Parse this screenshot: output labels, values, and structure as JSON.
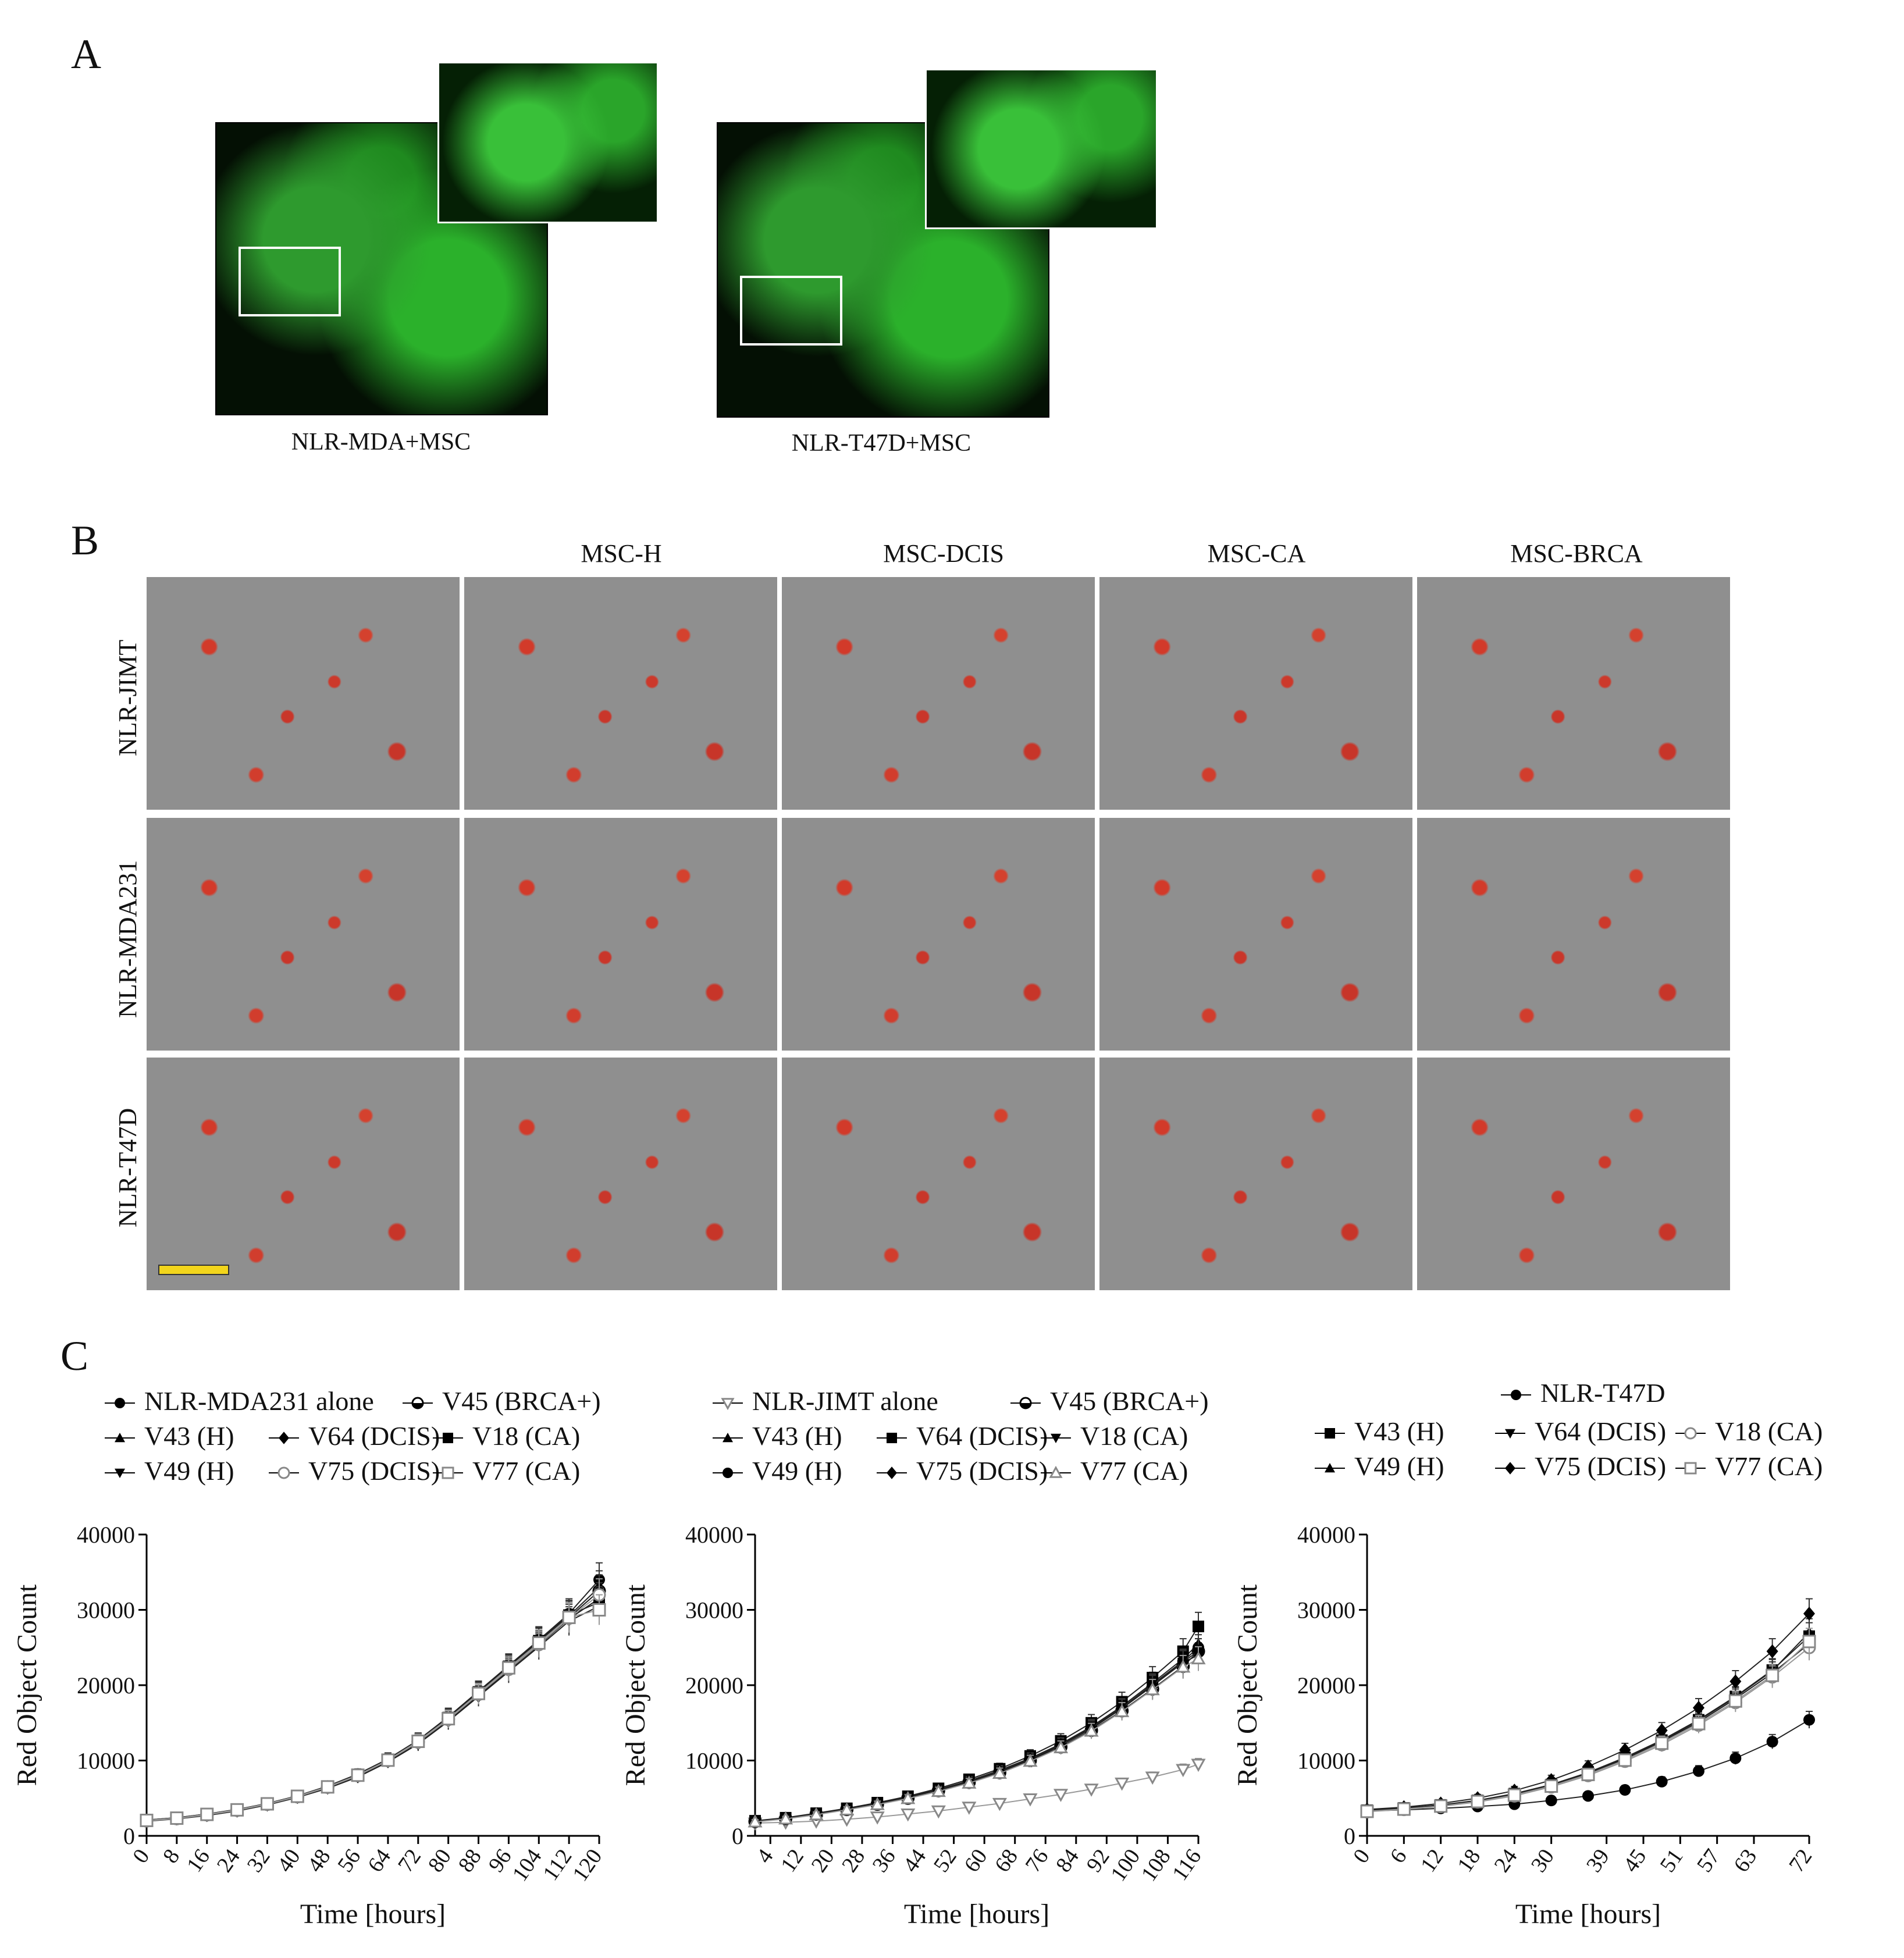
{
  "panels": {
    "a": {
      "letter": "A",
      "captions": [
        "NLR-MDA+MSC",
        "NLR-T47D+MSC"
      ]
    },
    "b": {
      "letter": "B",
      "column_headers": [
        "MSC-H",
        "MSC-DCIS",
        "MSC-CA",
        "MSC-BRCA"
      ],
      "row_headers": [
        "NLR-JIMT",
        "NLR-MDA231",
        "NLR-T47D"
      ]
    },
    "c": {
      "letter": "C"
    }
  },
  "chart_data": [
    {
      "type": "line",
      "title": "",
      "xlabel": "Time [hours]",
      "ylabel": "Red Object Count",
      "ylim": [
        0,
        40000
      ],
      "yticks": [
        0,
        10000,
        20000,
        30000,
        40000
      ],
      "ytick_labels": [
        "0",
        "10000",
        "20000",
        "30000",
        "40000"
      ],
      "xlim": [
        0,
        120
      ],
      "xticks": [
        0,
        8,
        16,
        24,
        32,
        40,
        48,
        56,
        64,
        72,
        80,
        88,
        96,
        104,
        112,
        120
      ],
      "x": [
        0,
        8,
        16,
        24,
        32,
        40,
        48,
        56,
        64,
        72,
        80,
        88,
        96,
        104,
        112,
        120
      ],
      "legend": [
        "NLR-MDA231 alone",
        "V45 (BRCA+)",
        "V43 (H)",
        "V64 (DCIS)",
        "V18 (CA)",
        "V49 (H)",
        "V75 (DCIS)",
        "V77 (CA)"
      ],
      "series": [
        {
          "name": "NLR-MDA231 alone",
          "values": [
            2100,
            2400,
            2900,
            3500,
            4300,
            5300,
            6600,
            8200,
            10200,
            12700,
            15800,
            19200,
            22600,
            26000,
            29500,
            34000
          ]
        },
        {
          "name": "V45 (BRCA+)",
          "values": [
            2000,
            2300,
            2800,
            3400,
            4200,
            5200,
            6500,
            8000,
            10000,
            12500,
            15500,
            18800,
            22200,
            25500,
            29000,
            32500
          ]
        },
        {
          "name": "V43 (H)",
          "values": [
            2050,
            2350,
            2850,
            3450,
            4250,
            5250,
            6550,
            8100,
            10100,
            12600,
            15600,
            19000,
            22400,
            25800,
            29200,
            33000
          ]
        },
        {
          "name": "V64 (DCIS)",
          "values": [
            2000,
            2300,
            2750,
            3350,
            4150,
            5150,
            6400,
            7900,
            9900,
            12300,
            15300,
            18600,
            22000,
            25300,
            28800,
            31500
          ]
        },
        {
          "name": "V18 (CA)",
          "values": [
            2100,
            2400,
            2900,
            3500,
            4300,
            5300,
            6600,
            8150,
            10150,
            12650,
            15700,
            19100,
            22500,
            25900,
            29300,
            31000
          ]
        },
        {
          "name": "V49 (H)",
          "values": [
            1950,
            2250,
            2700,
            3300,
            4100,
            5100,
            6300,
            7800,
            9800,
            12200,
            15200,
            18500,
            21800,
            25100,
            28500,
            30500
          ]
        },
        {
          "name": "V75 (DCIS)",
          "values": [
            2000,
            2300,
            2800,
            3400,
            4200,
            5200,
            6450,
            8000,
            10000,
            12450,
            15450,
            18800,
            22100,
            25400,
            28900,
            32000
          ]
        },
        {
          "name": "V77 (CA)",
          "values": [
            2050,
            2350,
            2850,
            3450,
            4250,
            5250,
            6500,
            8050,
            10050,
            12550,
            15550,
            18900,
            22300,
            25600,
            29000,
            30000
          ]
        }
      ]
    },
    {
      "type": "line",
      "title": "",
      "xlabel": "Time [hours]",
      "ylabel": "Red Object Count",
      "ylim": [
        0,
        40000
      ],
      "yticks": [
        0,
        10000,
        20000,
        30000,
        40000
      ],
      "ytick_labels": [
        "0",
        "10000",
        "20000",
        "30000",
        "40000"
      ],
      "xlim": [
        0,
        116
      ],
      "xticks": [
        4,
        12,
        20,
        28,
        36,
        44,
        52,
        60,
        68,
        76,
        84,
        92,
        100,
        108,
        116
      ],
      "x": [
        0,
        8,
        16,
        24,
        32,
        40,
        48,
        56,
        64,
        72,
        80,
        88,
        96,
        104,
        112,
        116
      ],
      "legend": [
        "NLR-JIMT alone",
        "V45 (BRCA+)",
        "V43 (H)",
        "V64 (DCIS)",
        "V18 (CA)",
        "V49 (H)",
        "V75 (DCIS)",
        "V77 (CA)"
      ],
      "series": [
        {
          "name": "NLR-JIMT alone",
          "values": [
            1700,
            1800,
            1950,
            2200,
            2500,
            2900,
            3300,
            3800,
            4300,
            4900,
            5500,
            6200,
            7000,
            7800,
            8800,
            9500
          ]
        },
        {
          "name": "V45 (BRCA+)",
          "values": [
            1900,
            2300,
            2900,
            3500,
            4200,
            5000,
            6000,
            7100,
            8400,
            10000,
            11800,
            14000,
            16600,
            19500,
            22500,
            24500
          ]
        },
        {
          "name": "V43 (H)",
          "values": [
            1950,
            2350,
            2950,
            3600,
            4300,
            5150,
            6150,
            7300,
            8700,
            10300,
            12200,
            14500,
            17200,
            20300,
            23500,
            25500
          ]
        },
        {
          "name": "V64 (DCIS)",
          "values": [
            2000,
            2400,
            3000,
            3650,
            4400,
            5250,
            6300,
            7500,
            8900,
            10600,
            12600,
            15000,
            17800,
            21000,
            24500,
            27800
          ]
        },
        {
          "name": "V18 (CA)",
          "values": [
            1900,
            2300,
            2850,
            3500,
            4200,
            5000,
            6000,
            7150,
            8500,
            10100,
            12000,
            14200,
            16900,
            19900,
            23000,
            24000
          ]
        },
        {
          "name": "V49 (H)",
          "values": [
            1950,
            2350,
            2900,
            3550,
            4250,
            5100,
            6100,
            7250,
            8600,
            10200,
            12100,
            14400,
            17000,
            20100,
            23200,
            25000
          ]
        },
        {
          "name": "V75 (DCIS)",
          "values": [
            1900,
            2300,
            2900,
            3550,
            4250,
            5050,
            6050,
            7200,
            8550,
            10150,
            12050,
            14300,
            16950,
            20000,
            23100,
            24500
          ]
        },
        {
          "name": "V77 (CA)",
          "values": [
            1850,
            2250,
            2800,
            3450,
            4150,
            4950,
            5900,
            7000,
            8300,
            9900,
            11700,
            13900,
            16500,
            19400,
            22400,
            23500
          ]
        }
      ]
    },
    {
      "type": "line",
      "title": "",
      "xlabel": "Time [hours]",
      "ylabel": "Red Object Count",
      "ylim": [
        0,
        40000
      ],
      "yticks": [
        0,
        10000,
        20000,
        30000,
        40000
      ],
      "ytick_labels": [
        "0",
        "10000",
        "20000",
        "30000",
        "40000"
      ],
      "xlim": [
        0,
        72
      ],
      "xticks": [
        0,
        6,
        12,
        18,
        24,
        30,
        39,
        45,
        51,
        57,
        63,
        72
      ],
      "x": [
        0,
        6,
        12,
        18,
        24,
        30,
        36,
        42,
        48,
        54,
        60,
        66,
        72
      ],
      "legend": [
        "NLR-T47D",
        "V43 (H)",
        "V64 (DCIS)",
        "V18 (CA)",
        "V49 (H)",
        "V75 (DCIS)",
        "V77 (CA)"
      ],
      "series": [
        {
          "name": "NLR-T47D",
          "values": [
            3300,
            3450,
            3650,
            3900,
            4200,
            4700,
            5300,
            6100,
            7200,
            8600,
            10300,
            12500,
            15400
          ]
        },
        {
          "name": "V43 (H)",
          "values": [
            3400,
            3700,
            4100,
            4700,
            5600,
            6800,
            8400,
            10400,
            12700,
            15400,
            18500,
            22000,
            26500
          ]
        },
        {
          "name": "V64 (DCIS)",
          "values": [
            3300,
            3600,
            4000,
            4600,
            5500,
            6700,
            8300,
            10200,
            12500,
            15100,
            18200,
            21600,
            25500
          ]
        },
        {
          "name": "V18 (CA)",
          "values": [
            3200,
            3500,
            3900,
            4500,
            5300,
            6500,
            8000,
            9900,
            12100,
            14700,
            17700,
            21100,
            25000
          ]
        },
        {
          "name": "V49 (H)",
          "values": [
            3350,
            3650,
            4050,
            4650,
            5550,
            6750,
            8350,
            10300,
            12600,
            15300,
            18400,
            21900,
            27000
          ]
        },
        {
          "name": "V75 (DCIS)",
          "values": [
            3500,
            3800,
            4300,
            5000,
            6000,
            7400,
            9200,
            11400,
            14000,
            17000,
            20500,
            24500,
            29500
          ]
        },
        {
          "name": "V77 (CA)",
          "values": [
            3250,
            3550,
            3950,
            4550,
            5400,
            6600,
            8150,
            10050,
            12300,
            14900,
            17900,
            21300,
            25800
          ]
        }
      ]
    }
  ]
}
